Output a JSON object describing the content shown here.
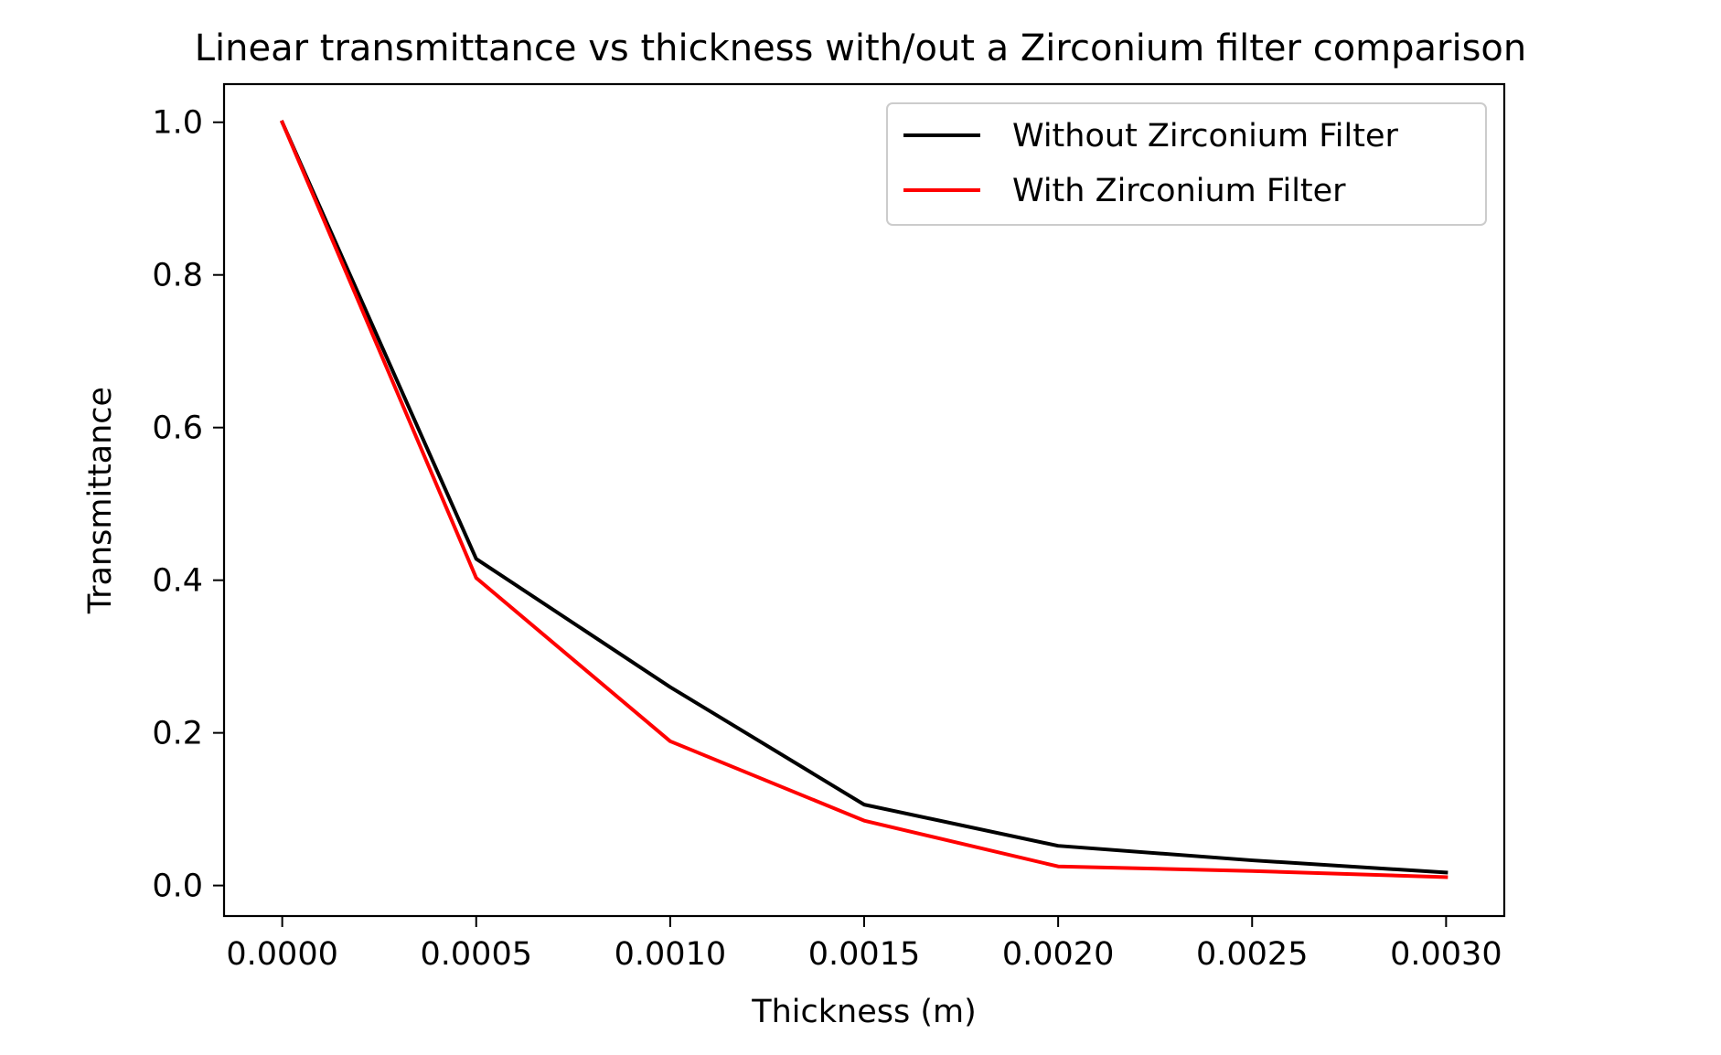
{
  "chart_data": {
    "type": "line",
    "title": "Linear transmittance vs thickness with/out a Zirconium filter comparison",
    "xlabel": "Thickness (m)",
    "ylabel": "Transmittance",
    "xlim": [
      -0.00015,
      0.00315
    ],
    "ylim": [
      -0.04,
      1.05
    ],
    "x": [
      0.0,
      0.0005,
      0.001,
      0.0015,
      0.002,
      0.0025,
      0.003
    ],
    "xticks": [
      0.0,
      0.0005,
      0.001,
      0.0015,
      0.002,
      0.0025,
      0.003
    ],
    "xtick_labels": [
      "0.0000",
      "0.0005",
      "0.0010",
      "0.0015",
      "0.0020",
      "0.0025",
      "0.0030"
    ],
    "yticks": [
      0.0,
      0.2,
      0.4,
      0.6,
      0.8,
      1.0
    ],
    "ytick_labels": [
      "0.0",
      "0.2",
      "0.4",
      "0.6",
      "0.8",
      "1.0"
    ],
    "grid": false,
    "legend_position": "top-right",
    "series": [
      {
        "name": "Without Zirconium Filter",
        "color": "#000000",
        "values": [
          1.0,
          0.428,
          0.26,
          0.106,
          0.052,
          0.033,
          0.017
        ]
      },
      {
        "name": "With Zirconium Filter",
        "color": "#ff0000",
        "values": [
          1.0,
          0.403,
          0.189,
          0.085,
          0.025,
          0.019,
          0.011
        ]
      }
    ]
  }
}
